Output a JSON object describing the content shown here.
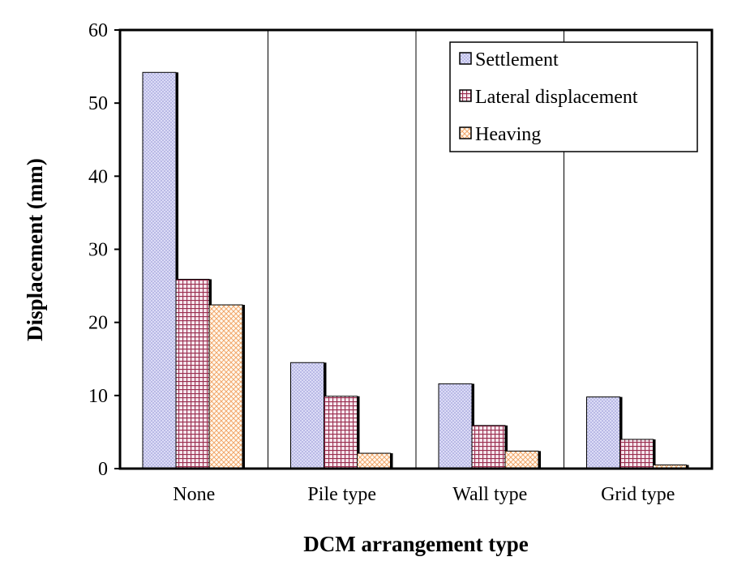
{
  "chart_data": {
    "type": "bar",
    "title": "",
    "xlabel": "DCM arrangement type",
    "ylabel": "Displacement (mm)",
    "ylim": [
      0,
      60
    ],
    "yticks": [
      0,
      10,
      20,
      30,
      40,
      50,
      60
    ],
    "grid": false,
    "legend_position": "top-right",
    "categories": [
      "None",
      "Pile type",
      "Wall type",
      "Grid type"
    ],
    "series": [
      {
        "name": "Settlement",
        "values": [
          54.2,
          14.5,
          11.6,
          9.8
        ],
        "color": "#c8c8f0",
        "pattern": "dots"
      },
      {
        "name": "Lateral displacement",
        "values": [
          25.9,
          9.9,
          5.9,
          4.0
        ],
        "color": "#9b2d4f",
        "pattern": "grid"
      },
      {
        "name": "Heaving",
        "values": [
          22.4,
          2.1,
          2.4,
          0.5
        ],
        "color": "#f0a060",
        "pattern": "lattice"
      }
    ]
  }
}
